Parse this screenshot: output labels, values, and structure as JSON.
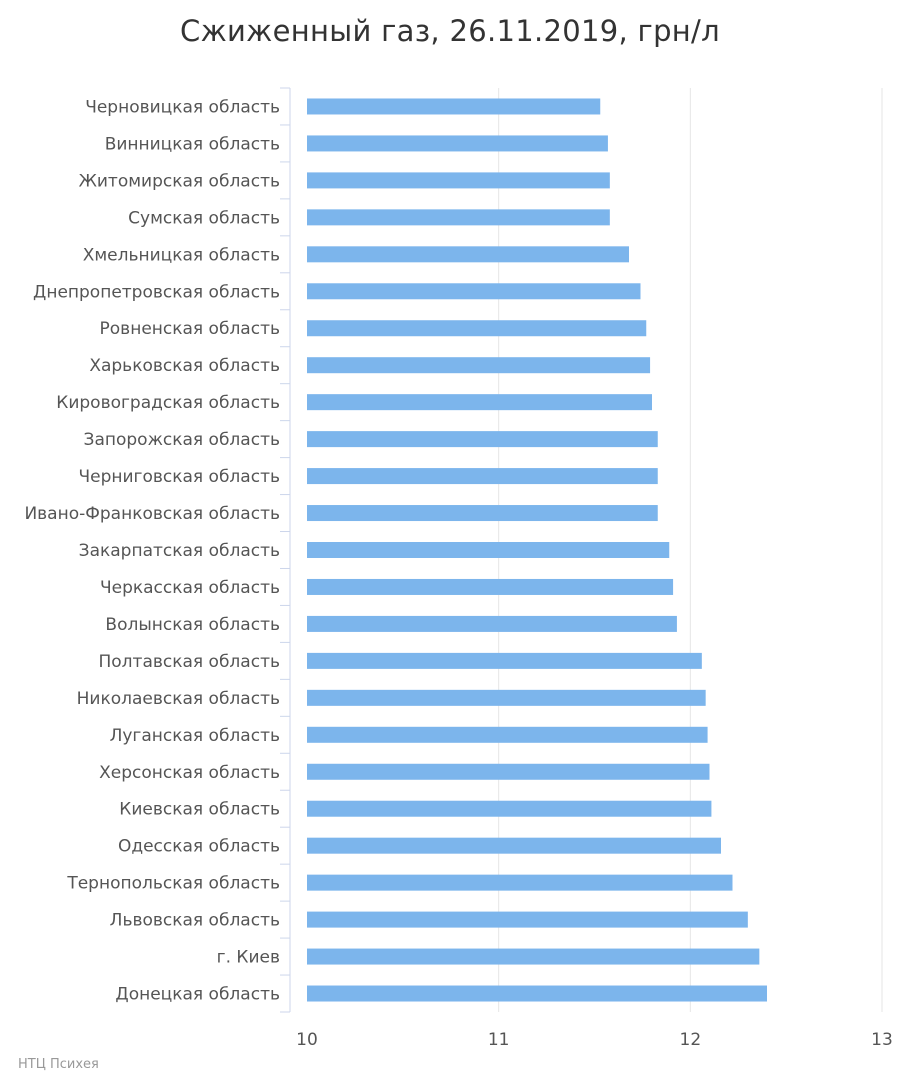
{
  "chart_data": {
    "type": "bar",
    "orientation": "horizontal",
    "title": "Сжиженный газ, 26.11.2019, грн/л",
    "xlim": [
      10,
      13
    ],
    "x_ticks": [
      "10",
      "11",
      "12",
      "13"
    ],
    "grid": true,
    "bar_color": "#7cb5ec",
    "categories": [
      "Черновицкая область",
      "Винницкая область",
      "Житомирская область",
      "Сумская область",
      "Хмельницкая область",
      "Днепропетровская область",
      "Ровненская область",
      "Харьковская область",
      "Кировоградская область",
      "Запорожская область",
      "Черниговская область",
      "Ивано-Франковская область",
      "Закарпатская область",
      "Черкасская область",
      "Волынская область",
      "Полтавская область",
      "Николаевская область",
      "Луганская область",
      "Херсонская область",
      "Киевская область",
      "Одесская область",
      "Тернопольская область",
      "Львовская область",
      "г. Киев",
      "Донецкая область"
    ],
    "values": [
      11.53,
      11.57,
      11.58,
      11.58,
      11.68,
      11.74,
      11.77,
      11.79,
      11.8,
      11.83,
      11.83,
      11.83,
      11.89,
      11.91,
      11.93,
      12.06,
      12.08,
      12.09,
      12.1,
      12.11,
      12.16,
      12.22,
      12.3,
      12.36,
      12.4
    ]
  },
  "credits": "НТЦ Психея"
}
